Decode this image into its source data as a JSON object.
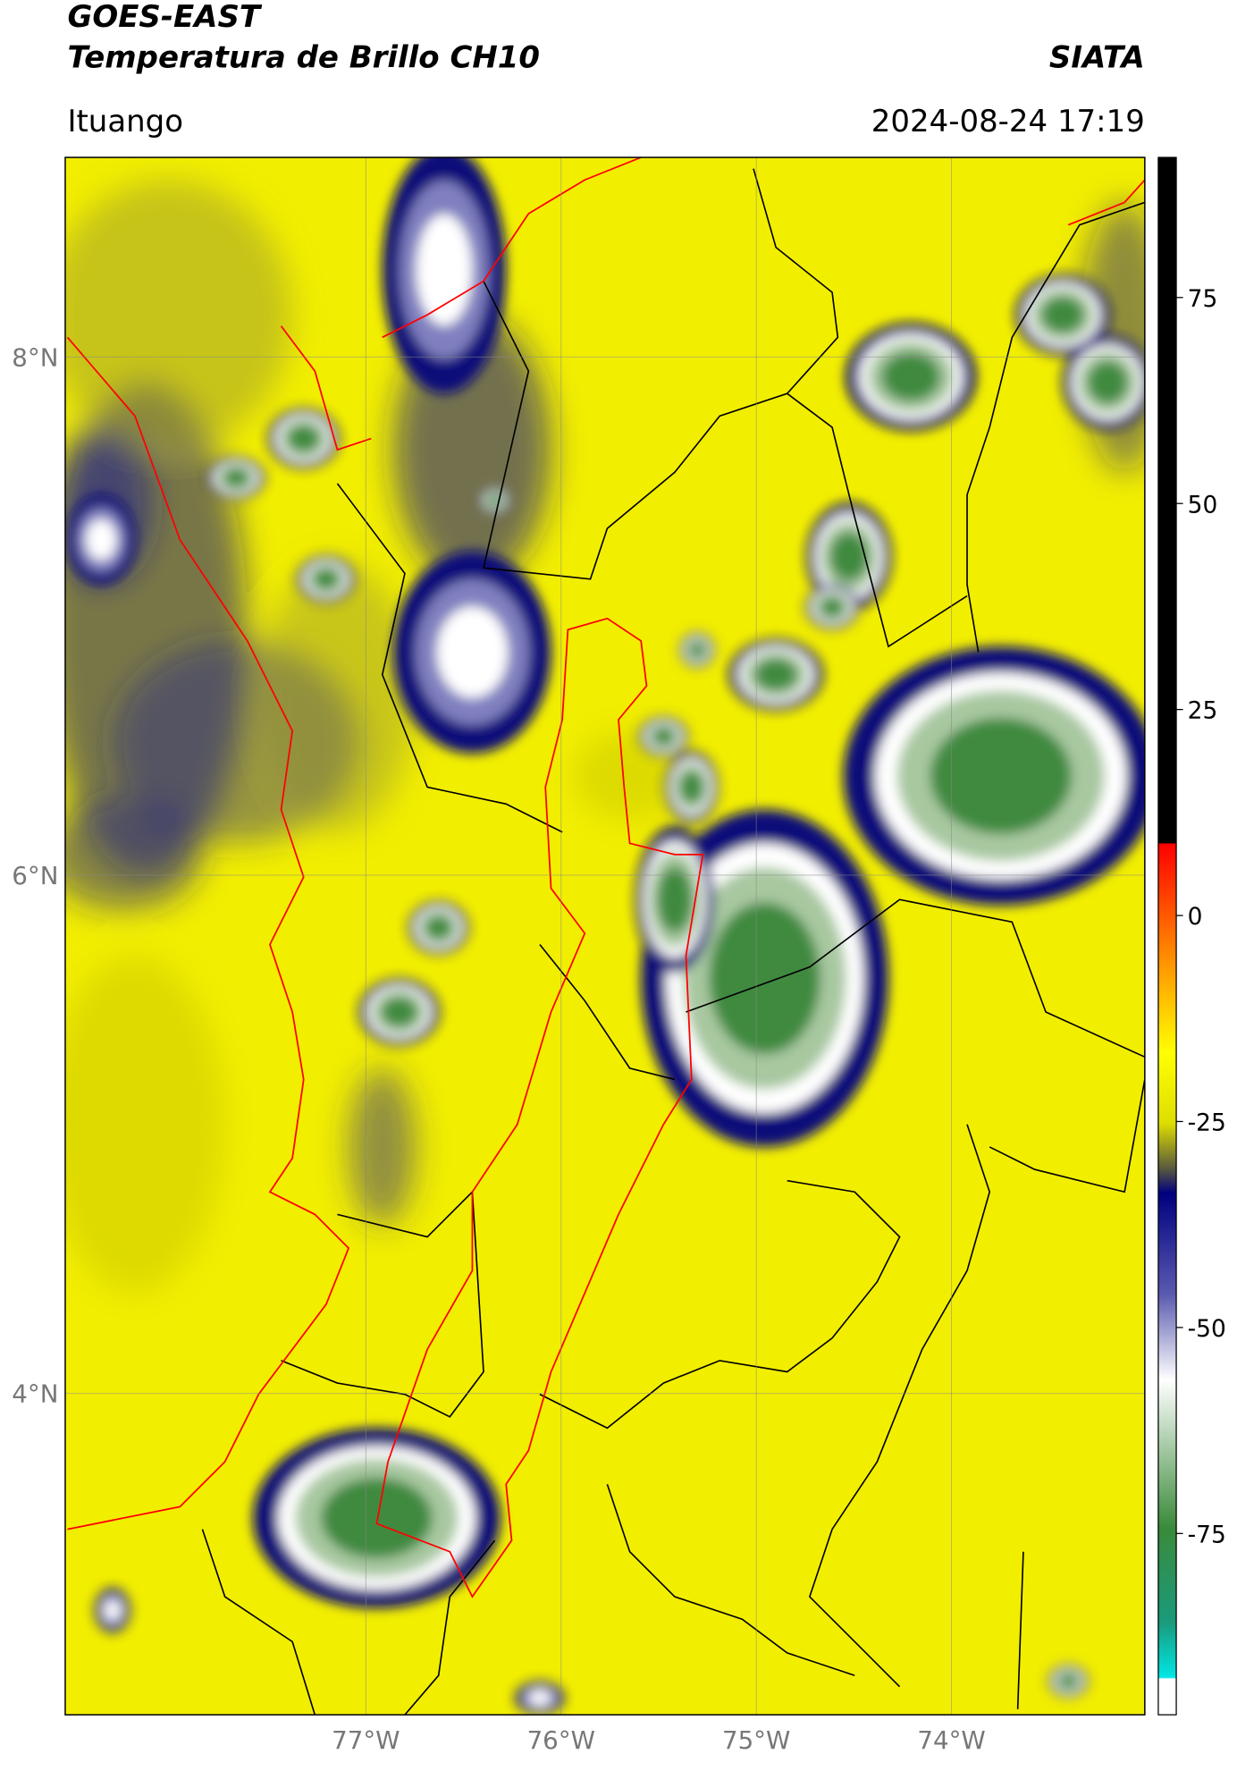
{
  "header": {
    "title": "GOES-EAST",
    "subtitle": "Temperatura de Brillo CH10",
    "source": "SIATA",
    "location": "Ituango",
    "datetime": "2024-08-24 17:19"
  },
  "map": {
    "lat_lim": [
      2.76,
      8.77
    ],
    "lon_lim": [
      -78.54,
      -73.01
    ],
    "lat_ticks": [
      {
        "value": 8,
        "label": "8°N"
      },
      {
        "value": 6,
        "label": "6°N"
      },
      {
        "value": 4,
        "label": "4°N"
      }
    ],
    "lon_ticks": [
      {
        "value": -77,
        "label": "77°W"
      },
      {
        "value": -76,
        "label": "76°W"
      },
      {
        "value": -75,
        "label": "75°W"
      },
      {
        "value": -74,
        "label": "74°W"
      }
    ]
  },
  "colorbar": {
    "lim": [
      -97,
      92
    ],
    "ticks": [
      75,
      50,
      25,
      0,
      -25,
      -50,
      -75
    ]
  }
}
